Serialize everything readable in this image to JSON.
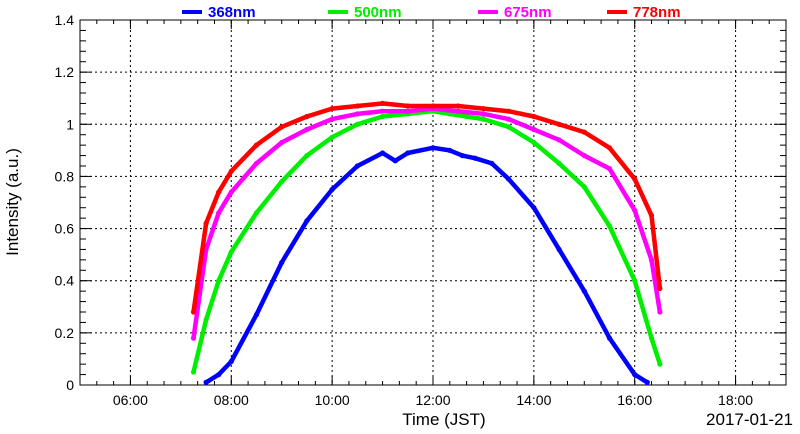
{
  "chart_data": {
    "type": "scatter",
    "title": "",
    "xlabel": "Time (JST)",
    "ylabel": "Intensity (a.u.)",
    "date_label": "2017-01-21",
    "xlim": [
      "05:00",
      "19:00"
    ],
    "ylim": [
      0,
      1.4
    ],
    "grid": true,
    "legend_position": "top",
    "x_ticks": [
      "06:00",
      "08:00",
      "10:00",
      "12:00",
      "14:00",
      "16:00",
      "18:00"
    ],
    "y_ticks": [
      "0",
      "0.2",
      "0.4",
      "0.6",
      "0.8",
      "1",
      "1.2",
      "1.4"
    ],
    "series": [
      {
        "name": "368nm",
        "color": "#0000ff",
        "x": [
          "07:30",
          "07:45",
          "08:00",
          "08:30",
          "09:00",
          "09:30",
          "10:00",
          "10:30",
          "11:00",
          "11:15",
          "11:30",
          "12:00",
          "12:20",
          "12:35",
          "12:50",
          "13:10",
          "13:30",
          "14:00",
          "14:30",
          "15:00",
          "15:30",
          "16:00",
          "16:15"
        ],
        "y": [
          0.01,
          0.04,
          0.09,
          0.27,
          0.47,
          0.63,
          0.75,
          0.84,
          0.89,
          0.86,
          0.89,
          0.91,
          0.9,
          0.88,
          0.87,
          0.85,
          0.79,
          0.68,
          0.52,
          0.36,
          0.18,
          0.04,
          0.01
        ]
      },
      {
        "name": "500nm",
        "color": "#00ee00",
        "x": [
          "07:15",
          "07:30",
          "07:45",
          "08:00",
          "08:30",
          "09:00",
          "09:30",
          "10:00",
          "10:30",
          "11:00",
          "11:30",
          "12:00",
          "12:20",
          "12:40",
          "13:00",
          "13:30",
          "14:00",
          "14:30",
          "15:00",
          "15:30",
          "16:00",
          "16:20",
          "16:30"
        ],
        "y": [
          0.05,
          0.25,
          0.4,
          0.51,
          0.66,
          0.78,
          0.88,
          0.95,
          1.0,
          1.03,
          1.04,
          1.05,
          1.04,
          1.03,
          1.02,
          0.99,
          0.93,
          0.85,
          0.76,
          0.61,
          0.4,
          0.18,
          0.08
        ]
      },
      {
        "name": "675nm",
        "color": "#ff00ff",
        "x": [
          "07:15",
          "07:30",
          "07:45",
          "08:00",
          "08:30",
          "09:00",
          "09:30",
          "10:00",
          "10:30",
          "11:00",
          "11:30",
          "12:00",
          "12:30",
          "13:00",
          "13:30",
          "14:00",
          "14:30",
          "15:00",
          "15:30",
          "16:00",
          "16:20",
          "16:30"
        ],
        "y": [
          0.18,
          0.52,
          0.66,
          0.74,
          0.85,
          0.93,
          0.98,
          1.02,
          1.04,
          1.05,
          1.05,
          1.06,
          1.05,
          1.04,
          1.02,
          0.98,
          0.94,
          0.88,
          0.83,
          0.67,
          0.48,
          0.28
        ]
      },
      {
        "name": "778nm",
        "color": "#ff0000",
        "x": [
          "07:15",
          "07:30",
          "07:45",
          "08:00",
          "08:30",
          "09:00",
          "09:30",
          "10:00",
          "10:30",
          "11:00",
          "11:30",
          "12:00",
          "12:30",
          "13:00",
          "13:30",
          "14:00",
          "14:30",
          "15:00",
          "15:30",
          "16:00",
          "16:20",
          "16:30"
        ],
        "y": [
          0.28,
          0.62,
          0.74,
          0.82,
          0.92,
          0.99,
          1.03,
          1.06,
          1.07,
          1.08,
          1.07,
          1.07,
          1.07,
          1.06,
          1.05,
          1.03,
          1.0,
          0.97,
          0.91,
          0.79,
          0.65,
          0.37
        ]
      }
    ]
  }
}
